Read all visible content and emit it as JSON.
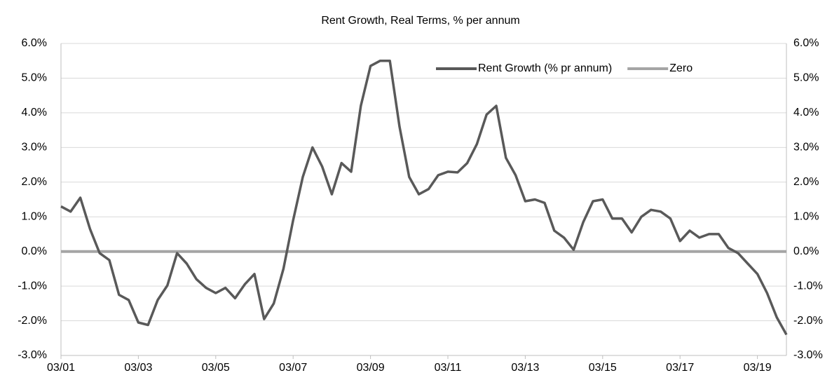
{
  "chart_data": {
    "type": "line",
    "title": "Rent Growth, Real Terms, % per annum",
    "categories": [
      "03/01",
      null,
      null,
      null,
      null,
      null,
      null,
      null,
      "03/03",
      null,
      null,
      null,
      null,
      null,
      null,
      null,
      "03/05",
      null,
      null,
      null,
      null,
      null,
      null,
      null,
      "03/07",
      null,
      null,
      null,
      null,
      null,
      null,
      null,
      "03/09",
      null,
      null,
      null,
      null,
      null,
      null,
      null,
      "03/11",
      null,
      null,
      null,
      null,
      null,
      null,
      null,
      "03/13",
      null,
      null,
      null,
      null,
      null,
      null,
      null,
      "03/15",
      null,
      null,
      null,
      null,
      null,
      null,
      null,
      "03/17",
      null,
      null,
      null,
      null,
      null,
      null,
      null,
      "03/19",
      null,
      null,
      null
    ],
    "series": [
      {
        "name": "Rent Growth (% pr annum)",
        "color": "#595959",
        "values": [
          1.3,
          1.15,
          1.55,
          0.65,
          -0.05,
          -0.25,
          -1.25,
          -1.4,
          -2.05,
          -2.12,
          -1.4,
          -0.98,
          -0.05,
          -0.35,
          -0.8,
          -1.05,
          -1.2,
          -1.05,
          -1.35,
          -0.95,
          -0.65,
          -1.95,
          -1.5,
          -0.5,
          0.9,
          2.15,
          3.0,
          2.45,
          1.65,
          2.55,
          2.3,
          4.2,
          5.35,
          5.5,
          5.5,
          3.6,
          2.15,
          1.65,
          1.8,
          2.2,
          2.3,
          2.28,
          2.55,
          3.1,
          3.95,
          4.2,
          2.7,
          2.2,
          1.45,
          1.5,
          1.4,
          0.6,
          0.4,
          0.05,
          0.85,
          1.45,
          1.5,
          0.95,
          0.95,
          0.55,
          1.0,
          1.2,
          1.15,
          0.95,
          0.3,
          0.6,
          0.4,
          0.5,
          0.5,
          0.1,
          -0.05,
          -0.35,
          -0.65,
          -1.2,
          -1.9,
          -2.4
        ]
      },
      {
        "name": "Zero",
        "color": "#a5a5a5",
        "values": [
          0,
          0,
          0,
          0,
          0,
          0,
          0,
          0,
          0,
          0,
          0,
          0,
          0,
          0,
          0,
          0,
          0,
          0,
          0,
          0,
          0,
          0,
          0,
          0,
          0,
          0,
          0,
          0,
          0,
          0,
          0,
          0,
          0,
          0,
          0,
          0,
          0,
          0,
          0,
          0,
          0,
          0,
          0,
          0,
          0,
          0,
          0,
          0,
          0,
          0,
          0,
          0,
          0,
          0,
          0,
          0,
          0,
          0,
          0,
          0,
          0,
          0,
          0,
          0,
          0,
          0,
          0,
          0,
          0,
          0,
          0,
          0,
          0,
          0,
          0,
          0
        ]
      }
    ],
    "ylim": [
      -3,
      6
    ],
    "yticks": [
      {
        "value": -3,
        "label": "-3.0%"
      },
      {
        "value": -2,
        "label": "-2.0%"
      },
      {
        "value": -1,
        "label": "-1.0%"
      },
      {
        "value": 0,
        "label": "0.0%"
      },
      {
        "value": 1,
        "label": "1.0%"
      },
      {
        "value": 2,
        "label": "2.0%"
      },
      {
        "value": 3,
        "label": "3.0%"
      },
      {
        "value": 4,
        "label": "4.0%"
      },
      {
        "value": 5,
        "label": "5.0%"
      },
      {
        "value": 6,
        "label": "6.0%"
      }
    ],
    "grid": true,
    "legend": "top-right"
  }
}
